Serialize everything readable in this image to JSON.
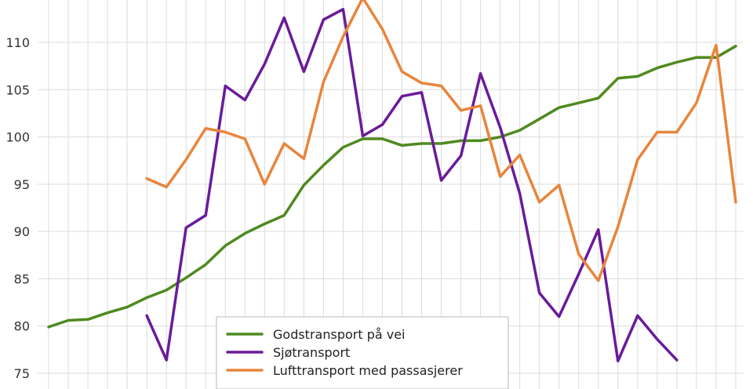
{
  "chart_data": {
    "type": "line",
    "title": "",
    "xlabel": "",
    "ylabel": "",
    "ylim": [
      75,
      116
    ],
    "y_ticks": [
      75,
      80,
      85,
      90,
      95,
      100,
      105,
      110,
      115
    ],
    "y_tick_labels": [
      "75",
      "80",
      "85",
      "90",
      "95",
      "100",
      "105",
      "110",
      "115"
    ],
    "grid": true,
    "legend_position": "bottom-center",
    "series": [
      {
        "name": "Godstransport på vei",
        "color": "#4f8a1f",
        "values": [
          79.9,
          80.6,
          80.7,
          81.4,
          82.0,
          83.0,
          83.8,
          85.1,
          86.5,
          88.5,
          89.8,
          90.8,
          91.7,
          94.9,
          97.0,
          98.9,
          99.8,
          99.8,
          99.1,
          99.3,
          99.3,
          99.6,
          99.6,
          100.0,
          100.7,
          101.9,
          103.1,
          103.6,
          104.1,
          106.2,
          106.4,
          107.3,
          107.9,
          108.4,
          108.4,
          109.6
        ]
      },
      {
        "name": "Sjøtransport",
        "color": "#6a1b9a",
        "values": [
          null,
          null,
          null,
          null,
          null,
          81.1,
          76.4,
          90.4,
          91.7,
          105.4,
          103.9,
          107.7,
          112.6,
          106.9,
          112.4,
          113.5,
          100.1,
          101.3,
          104.3,
          104.7,
          95.4,
          98.0,
          106.7,
          101.0,
          94.0,
          83.5,
          81.0,
          85.5,
          90.2,
          76.3,
          81.1,
          78.6,
          76.4,
          null,
          null,
          null
        ]
      },
      {
        "name": "Lufttransport med passasjerer",
        "color": "#e8853c",
        "values": [
          null,
          null,
          null,
          null,
          null,
          95.6,
          94.7,
          97.6,
          100.9,
          100.5,
          99.8,
          95.0,
          99.3,
          97.7,
          105.8,
          110.6,
          114.7,
          111.4,
          106.9,
          105.7,
          105.4,
          102.8,
          103.3,
          95.8,
          98.1,
          93.1,
          94.9,
          87.6,
          84.8,
          90.5,
          97.6,
          100.5,
          100.5,
          103.6,
          109.7,
          93.1
        ]
      }
    ]
  }
}
